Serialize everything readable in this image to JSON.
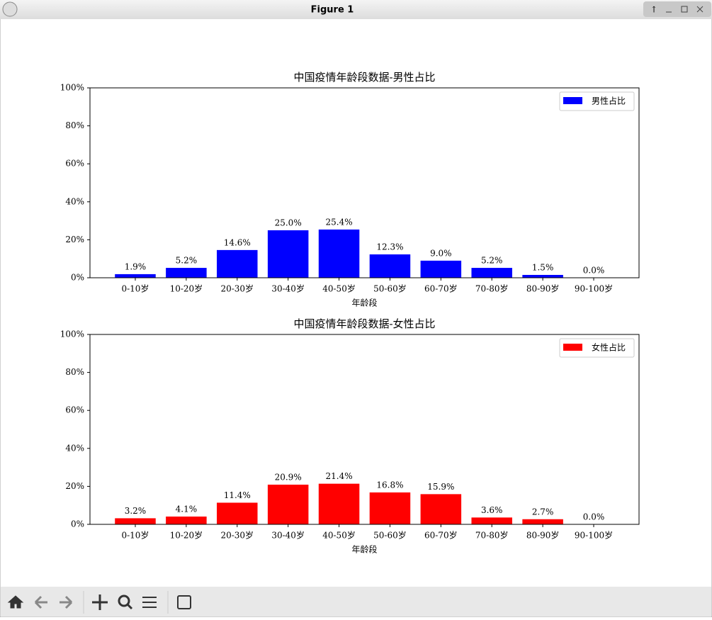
{
  "window": {
    "title": "Figure 1"
  },
  "chart_data": [
    {
      "type": "bar",
      "title": "中国疫情年龄段数据-男性占比",
      "x_label": "年龄段",
      "categories": [
        "0-10岁",
        "10-20岁",
        "20-30岁",
        "30-40岁",
        "40-50岁",
        "50-60岁",
        "60-70岁",
        "70-80岁",
        "80-90岁",
        "90-100岁"
      ],
      "series": [
        {
          "name": "男性占比",
          "color": "#0000ff",
          "values": [
            1.9,
            5.2,
            14.6,
            25.0,
            25.4,
            12.3,
            9.0,
            5.2,
            1.5,
            0.0
          ],
          "value_labels": [
            "1.9%",
            "5.2%",
            "14.6%",
            "25.0%",
            "25.4%",
            "12.3%",
            "9.0%",
            "5.2%",
            "1.5%",
            "0.0%"
          ]
        }
      ],
      "ylim": [
        0,
        100
      ],
      "yticks": [
        {
          "value": 0,
          "label": "0%"
        },
        {
          "value": 20,
          "label": "20%"
        },
        {
          "value": 40,
          "label": "40%"
        },
        {
          "value": 60,
          "label": "60%"
        },
        {
          "value": 80,
          "label": "80%"
        },
        {
          "value": 100,
          "label": "100%"
        }
      ],
      "legend": "upper right"
    },
    {
      "type": "bar",
      "title": "中国疫情年龄段数据-女性占比",
      "x_label": "年龄段",
      "categories": [
        "0-10岁",
        "10-20岁",
        "20-30岁",
        "30-40岁",
        "40-50岁",
        "50-60岁",
        "60-70岁",
        "70-80岁",
        "80-90岁",
        "90-100岁"
      ],
      "series": [
        {
          "name": "女性占比",
          "color": "#ff0000",
          "values": [
            3.2,
            4.1,
            11.4,
            20.9,
            21.4,
            16.8,
            15.9,
            3.6,
            2.7,
            0.0
          ],
          "value_labels": [
            "3.2%",
            "4.1%",
            "11.4%",
            "20.9%",
            "21.4%",
            "16.8%",
            "15.9%",
            "3.6%",
            "2.7%",
            "0.0%"
          ]
        }
      ],
      "ylim": [
        0,
        100
      ],
      "yticks": [
        {
          "value": 0,
          "label": "0%"
        },
        {
          "value": 20,
          "label": "20%"
        },
        {
          "value": 40,
          "label": "40%"
        },
        {
          "value": 60,
          "label": "60%"
        },
        {
          "value": 80,
          "label": "80%"
        },
        {
          "value": 100,
          "label": "100%"
        }
      ],
      "legend": "upper right"
    }
  ]
}
